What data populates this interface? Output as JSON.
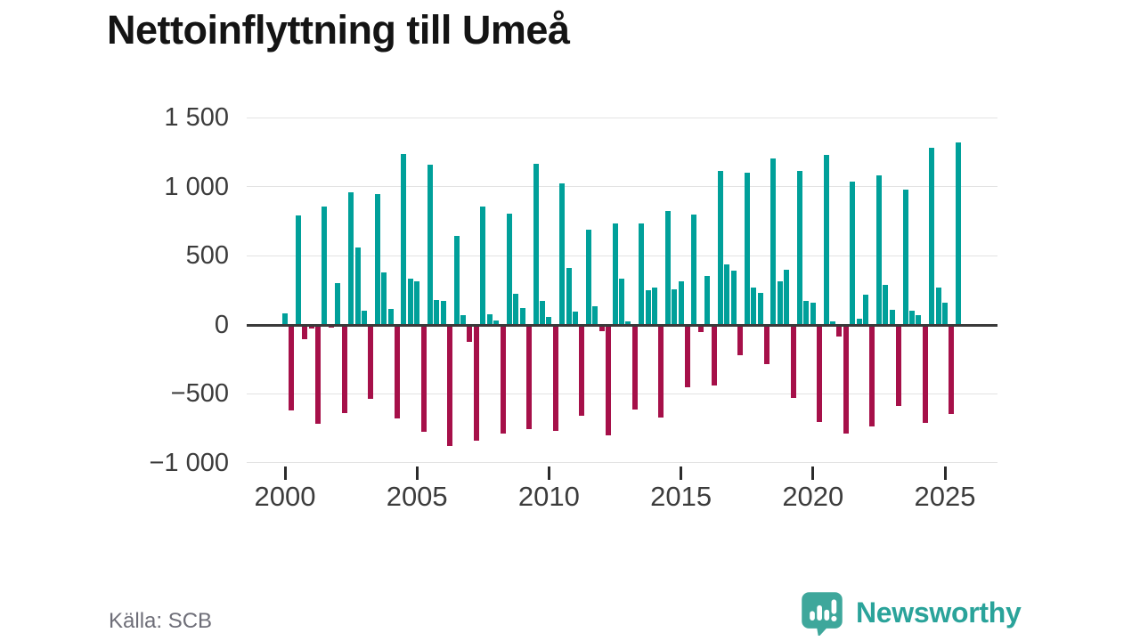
{
  "title": "Nettoinflyttning till Umeå",
  "source": {
    "label": "Källa: SCB"
  },
  "logo": {
    "text": "Newsworthy",
    "icon": "newsworthy-speech-bubble-bar-chart-icon"
  },
  "colors": {
    "positive_bar": "#00a09a",
    "negative_bar": "#a61049",
    "gridline": "#e3e3e3",
    "zero_axis": "#3a3a3a",
    "logo_teal": "#2aa39a",
    "text_dark": "#3c3c3c",
    "text_muted": "#6e6e78"
  },
  "chart_data": {
    "type": "bar",
    "title": "Nettoinflyttning till Umeå",
    "xlabel": "",
    "ylabel": "",
    "ylim": [
      -1000,
      1500
    ],
    "grid": true,
    "legend": false,
    "y_ticks": [
      1500,
      1000,
      500,
      0,
      -500,
      -1000
    ],
    "y_tick_labels": [
      "1 500",
      "1 000",
      "500",
      "0",
      "−500",
      "−1 000"
    ],
    "x_ticks": [
      {
        "year": 2000,
        "label": "2000"
      },
      {
        "year": 2005,
        "label": "2005"
      },
      {
        "year": 2010,
        "label": "2010"
      },
      {
        "year": 2015,
        "label": "2015"
      },
      {
        "year": 2020,
        "label": "2020"
      },
      {
        "year": 2025,
        "label": "2025"
      }
    ],
    "frequency": "quarterly",
    "series": [
      {
        "year": 2000,
        "values": [
          80,
          -620,
          790,
          -105
        ]
      },
      {
        "year": 2001,
        "values": [
          -30,
          -720,
          855,
          -25
        ]
      },
      {
        "year": 2002,
        "values": [
          300,
          -640,
          955,
          560
        ]
      },
      {
        "year": 2003,
        "values": [
          100,
          -540,
          945,
          380
        ]
      },
      {
        "year": 2004,
        "values": [
          110,
          -680,
          1235,
          330
        ]
      },
      {
        "year": 2005,
        "values": [
          310,
          -780,
          1155,
          175
        ]
      },
      {
        "year": 2006,
        "values": [
          170,
          -880,
          640,
          65
        ]
      },
      {
        "year": 2007,
        "values": [
          -125,
          -845,
          855,
          75
        ]
      },
      {
        "year": 2008,
        "values": [
          30,
          -790,
          805,
          220
        ]
      },
      {
        "year": 2009,
        "values": [
          120,
          -755,
          1165,
          170
        ]
      },
      {
        "year": 2010,
        "values": [
          55,
          -770,
          1020,
          410
        ]
      },
      {
        "year": 2011,
        "values": [
          95,
          -660,
          690,
          130
        ]
      },
      {
        "year": 2012,
        "values": [
          -50,
          -800,
          735,
          330
        ]
      },
      {
        "year": 2013,
        "values": [
          20,
          -615,
          735,
          250
        ]
      },
      {
        "year": 2014,
        "values": [
          270,
          -675,
          825,
          255
        ]
      },
      {
        "year": 2015,
        "values": [
          315,
          -455,
          800,
          -55
        ]
      },
      {
        "year": 2016,
        "values": [
          350,
          -445,
          1110,
          435
        ]
      },
      {
        "year": 2017,
        "values": [
          390,
          -225,
          1100,
          265
        ]
      },
      {
        "year": 2018,
        "values": [
          230,
          -290,
          1205,
          310
        ]
      },
      {
        "year": 2019,
        "values": [
          395,
          -535,
          1115,
          170
        ]
      },
      {
        "year": 2020,
        "values": [
          155,
          -705,
          1230,
          20
        ]
      },
      {
        "year": 2021,
        "values": [
          -85,
          -790,
          1035,
          40
        ]
      },
      {
        "year": 2022,
        "values": [
          215,
          -740,
          1080,
          285
        ]
      },
      {
        "year": 2023,
        "values": [
          105,
          -590,
          975,
          100
        ]
      },
      {
        "year": 2024,
        "values": [
          65,
          -710,
          1280,
          270
        ]
      },
      {
        "year": 2025,
        "values": [
          155,
          -650,
          1320,
          null
        ]
      }
    ]
  }
}
